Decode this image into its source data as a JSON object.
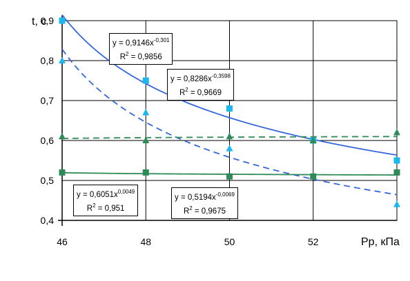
{
  "chart_data": {
    "type": "scatter",
    "ylabel": "t, с",
    "xlabel": "Рр, кПа",
    "xlim": [
      46,
      54
    ],
    "ylim": [
      0.4,
      0.9
    ],
    "x_ticks": [
      "46",
      "48",
      "50",
      "52"
    ],
    "y_ticks": [
      "0,4",
      "0,5",
      "0,6",
      "0,7",
      "0,8",
      "0,9"
    ],
    "grid": true,
    "series": [
      {
        "marker": "square",
        "color": "#1ab8ee",
        "x": [
          46,
          48,
          50,
          52,
          54
        ],
        "y": [
          0.9,
          0.75,
          0.68,
          0.6,
          0.55
        ],
        "trend": {
          "a": 0.9146,
          "b": -0.301,
          "line": "solid",
          "color": "#3366dd"
        }
      },
      {
        "marker": "triangle",
        "color": "#1ab8ee",
        "x": [
          46,
          48,
          50,
          52,
          54
        ],
        "y": [
          0.8,
          0.67,
          0.58,
          0.51,
          0.44
        ],
        "trend": {
          "a": 0.8286,
          "b": -0.3598,
          "line": "dashed",
          "color": "#3366dd"
        }
      },
      {
        "marker": "triangle",
        "color": "#2e8b57",
        "x": [
          46,
          48,
          50,
          52,
          54
        ],
        "y": [
          0.61,
          0.6,
          0.61,
          0.6,
          0.62
        ],
        "trend": {
          "a": 0.6051,
          "b": 0.0049,
          "line": "dashed",
          "color": "#2e8b57"
        }
      },
      {
        "marker": "square",
        "color": "#2e8b57",
        "x": [
          46,
          48,
          50,
          52,
          54
        ],
        "y": [
          0.52,
          0.52,
          0.51,
          0.51,
          0.52
        ],
        "trend": {
          "a": 0.5194,
          "b": -0.0069,
          "line": "solid",
          "color": "#2e8b57"
        }
      }
    ],
    "annotations": [
      {
        "eq_prefix": "y = 0,9146x",
        "eq_exp": "-0,301",
        "r2_prefix": "R",
        "r2_exp": "2",
        "r2_value": " = 0,9856"
      },
      {
        "eq_prefix": "y = 0,8286x",
        "eq_exp": "-0,3598",
        "r2_prefix": "R",
        "r2_exp": "2",
        "r2_value": " = 0,9669"
      },
      {
        "eq_prefix": "y = 0,6051x",
        "eq_exp": "0,0049",
        "r2_prefix": "R",
        "r2_exp": "2",
        "r2_value": " = 0,951"
      },
      {
        "eq_prefix": "y = 0,5194x",
        "eq_exp": "-0,0069",
        "r2_prefix": "R",
        "r2_exp": "2",
        "r2_value": " = 0,9675"
      }
    ]
  }
}
